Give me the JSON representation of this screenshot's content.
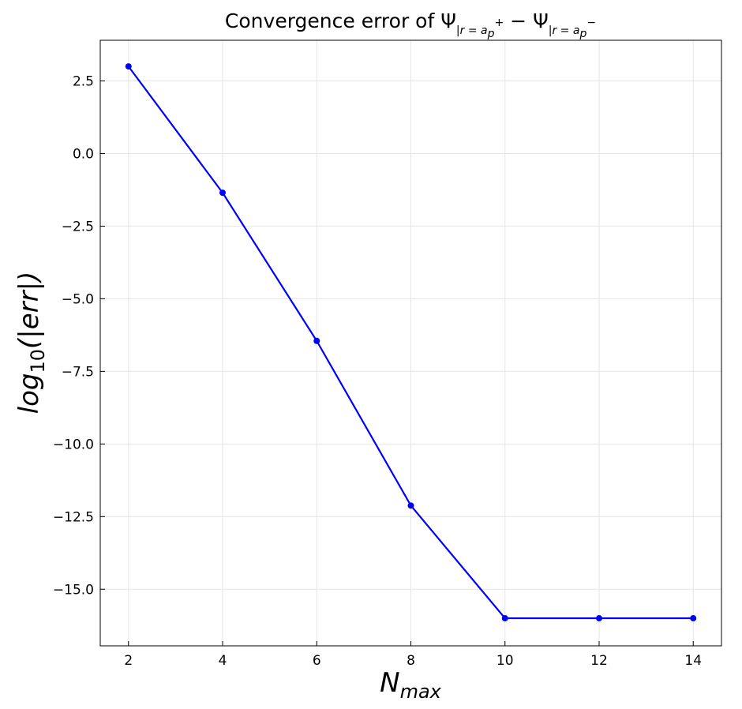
{
  "chart_data": {
    "type": "line",
    "title": {
      "prefix": "Convergence error of ",
      "psi": "Ψ",
      "sub1": "|r = a",
      "sub1_p": "p",
      "sup_plus": "+",
      "minus": " − ",
      "sub2": "|r = a",
      "sub2_p": "p",
      "sup_minus": "−"
    },
    "xlabel": {
      "main": "N",
      "sub": "max"
    },
    "ylabel": {
      "main": "log",
      "sub": "10",
      "rest": "(|err|)"
    },
    "x": [
      2,
      4,
      6,
      8,
      10,
      12,
      14
    ],
    "series": [
      {
        "values": [
          3.0,
          -1.35,
          -6.45,
          -12.12,
          -16.0,
          -16.0,
          -16.0
        ],
        "color": "#0000ff",
        "marker": "circle"
      }
    ],
    "xlim": [
      1.4,
      14.6
    ],
    "ylim": [
      -16.95,
      3.9
    ],
    "xticks": [
      2,
      4,
      6,
      8,
      10,
      12,
      14
    ],
    "xtick_labels": [
      "2",
      "4",
      "6",
      "8",
      "10",
      "12",
      "14"
    ],
    "yticks": [
      2.5,
      0.0,
      -2.5,
      -5.0,
      -7.5,
      -10.0,
      -12.5,
      -15.0
    ],
    "ytick_labels": [
      "2.5",
      "0.0",
      "−2.5",
      "−5.0",
      "−7.5",
      "−10.0",
      "−12.5",
      "−15.0"
    ],
    "grid": true
  }
}
